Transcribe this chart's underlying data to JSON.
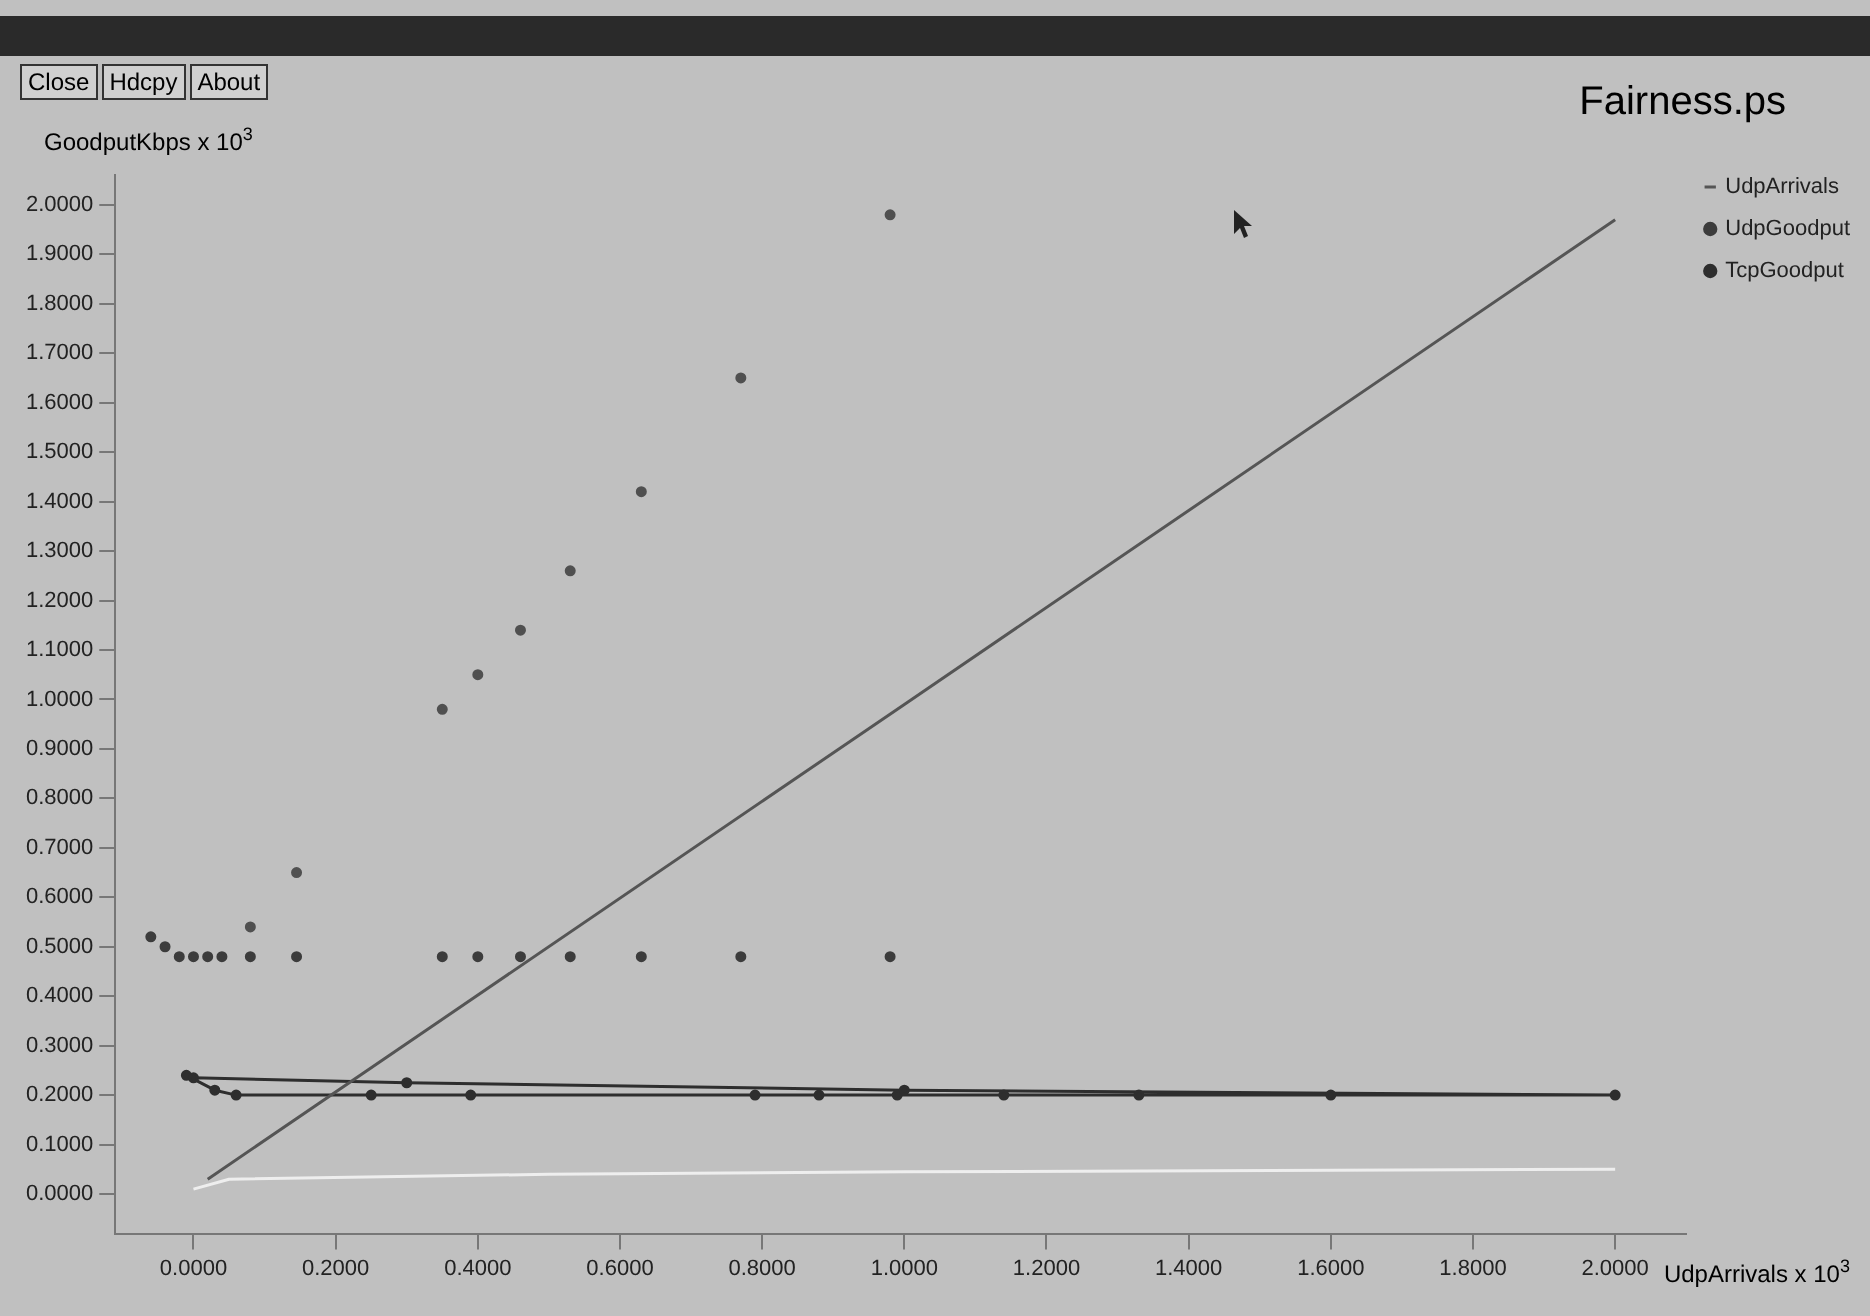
{
  "chart_data": {
    "type": "scatter",
    "title": "Fairness.ps",
    "xlabel": "UdpArrivals x 10$^{3}$",
    "ylabel": "GoodputKbps x 10$^{3}$",
    "annotations": [
      "Close",
      "Hdcpy",
      "About"
    ],
    "xlim": [
      -0.11,
      2.1
    ],
    "ylim": [
      -0.08,
      2.06
    ],
    "xticks": [
      {
        "value": 0,
        "label": "0.0000"
      },
      {
        "value": 0.2,
        "label": "0.2000"
      },
      {
        "value": 0.4,
        "label": "0.4000"
      },
      {
        "value": 0.6,
        "label": "0.6000"
      },
      {
        "value": 0.8,
        "label": "0.8000"
      },
      {
        "value": 1,
        "label": "1.0000"
      },
      {
        "value": 1.2,
        "label": "1.2000"
      },
      {
        "value": 1.4,
        "label": "1.4000"
      },
      {
        "value": 1.6,
        "label": "1.6000"
      },
      {
        "value": 1.8,
        "label": "1.8000"
      },
      {
        "value": 2,
        "label": "2.0000"
      }
    ],
    "yticks": [
      {
        "value": 0,
        "label": "0.0000"
      },
      {
        "value": 0.1,
        "label": "0.1000"
      },
      {
        "value": 0.2,
        "label": "0.2000"
      },
      {
        "value": 0.3,
        "label": "0.3000"
      },
      {
        "value": 0.4,
        "label": "0.4000"
      },
      {
        "value": 0.5,
        "label": "0.5000"
      },
      {
        "value": 0.6,
        "label": "0.6000"
      },
      {
        "value": 0.7,
        "label": "0.7000"
      },
      {
        "value": 0.8,
        "label": "0.8000"
      },
      {
        "value": 0.9,
        "label": "0.9000"
      },
      {
        "value": 1,
        "label": "1.0000"
      },
      {
        "value": 1.1,
        "label": "1.1000"
      },
      {
        "value": 1.2,
        "label": "1.2000"
      },
      {
        "value": 1.3,
        "label": "1.3000"
      },
      {
        "value": 1.4,
        "label": "1.4000"
      },
      {
        "value": 1.5,
        "label": "1.5000"
      },
      {
        "value": 1.6,
        "label": "1.6000"
      },
      {
        "value": 1.7,
        "label": "1.7000"
      },
      {
        "value": 1.8,
        "label": "1.8000"
      },
      {
        "value": 1.9,
        "label": "1.9000"
      },
      {
        "value": 2,
        "label": "2.0000"
      }
    ],
    "grid": false,
    "legend": "top right",
    "series": [
      {
        "name": "UdpArrivals",
        "type": "line",
        "marker": "none",
        "color": "#555555",
        "x": [
          0.02,
          1.0,
          2.0
        ],
        "values": [
          0.03,
          0.99,
          1.97
        ]
      },
      {
        "name": "UdpGoodput",
        "type": "scatter",
        "marker": "circle",
        "color": "#3c3c3c",
        "x": [
          -0.06,
          -0.04,
          -0.02,
          0.0,
          0.02,
          0.04,
          0.08,
          0.145,
          0.35,
          0.4,
          0.46,
          0.53,
          0.63,
          0.77,
          0.98
        ],
        "values": [
          0.52,
          0.5,
          0.48,
          0.48,
          0.48,
          0.48,
          0.48,
          0.48,
          0.48,
          0.48,
          0.48,
          0.48,
          0.48,
          0.48,
          0.48
        ]
      },
      {
        "name": "TcpGoodput",
        "type": "line",
        "marker": "circle",
        "color": "#2e2e2e",
        "x": [
          -0.01,
          0.03,
          0.06,
          0.25,
          0.39,
          0.79,
          0.88,
          0.99,
          1.14,
          1.33,
          1.6,
          2.0,
          1.0,
          0.3,
          0.0
        ],
        "values": [
          0.24,
          0.21,
          0.2,
          0.2,
          0.2,
          0.2,
          0.2,
          0.2,
          0.2,
          0.2,
          0.2,
          0.2,
          0.21,
          0.225,
          0.235
        ]
      },
      {
        "type": "scatter",
        "marker": "circle",
        "color": "#505050",
        "x": [
          0.08,
          0.145,
          0.35,
          0.4,
          0.46,
          0.53,
          0.63,
          0.77,
          0.98
        ],
        "values": [
          0.54,
          0.65,
          0.98,
          1.05,
          1.14,
          1.26,
          1.42,
          1.65,
          1.98
        ]
      },
      {
        "type": "line",
        "marker": "none",
        "color": "#eeeeee",
        "x": [
          0.0,
          0.05,
          0.5,
          1.0,
          2.0
        ],
        "values": [
          0.01,
          0.03,
          0.04,
          0.045,
          0.05
        ]
      }
    ]
  }
}
